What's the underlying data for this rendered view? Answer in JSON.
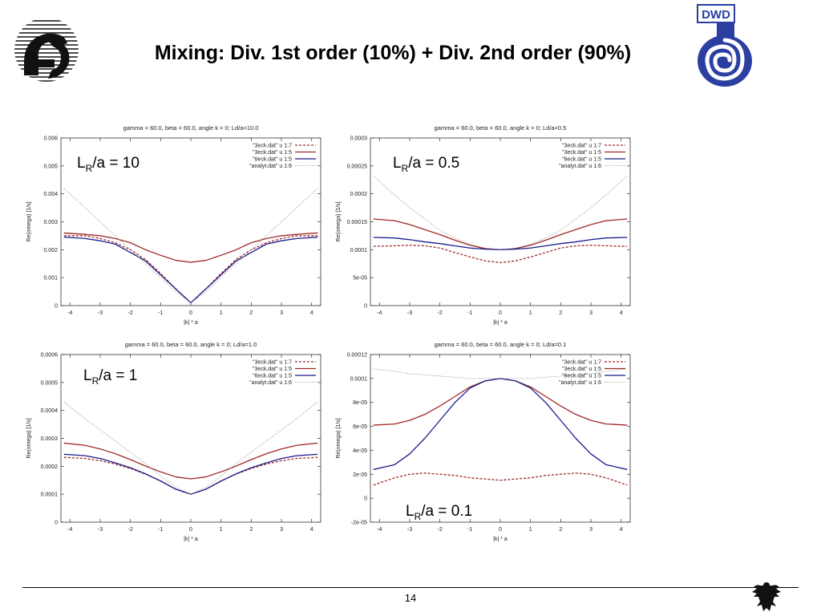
{
  "slide": {
    "title": "Mixing: Div. 1st order (10%) + Div. 2nd order (90%)",
    "page_number": "14",
    "logo_right_text": "DWD"
  },
  "colors": {
    "red": "#a02828",
    "blue": "#1a1a8c",
    "gray": "#9a9a9a"
  },
  "chart_data": [
    {
      "type": "line",
      "title": "gamma = 60.0, beta = 60.0, angle k = 0;  Ld/a=10.0",
      "xlabel": "|k| * a",
      "ylabel": "Re(omega) [1/s]",
      "xlim": [
        -4.3,
        4.3
      ],
      "ylim": [
        0,
        0.006
      ],
      "xticks": [
        -4,
        -3,
        -2,
        -1,
        0,
        1,
        2,
        3,
        4
      ],
      "xtick_labels": [
        "-4",
        "-3",
        "-2",
        "-1",
        "0",
        "1",
        "2",
        "3",
        "4"
      ],
      "yticks": [
        0,
        0.001,
        0.002,
        0.003,
        0.004,
        0.005,
        0.006
      ],
      "ytick_labels": [
        "0",
        "0.001",
        "0.002",
        "0.003",
        "0.004",
        "0.005",
        "0.006"
      ],
      "legend_position": "top-right",
      "annotation": {
        "base": "L",
        "sub": "R",
        "rest": "/a = 10"
      },
      "x": [
        -4.2,
        -3.5,
        -3,
        -2.5,
        -2,
        -1.5,
        -1,
        -0.5,
        0,
        0.5,
        1,
        1.5,
        2,
        2.5,
        3,
        3.5,
        4.2
      ],
      "series": [
        {
          "name": "\"3eck.dat\" u 1:7",
          "color": "red",
          "style": "dashed",
          "values": [
            0.0025,
            0.0025,
            0.0024,
            0.00225,
            0.002,
            0.00165,
            0.00115,
            0.0006,
            0.0001,
            0.0006,
            0.00115,
            0.00165,
            0.002,
            0.00225,
            0.0024,
            0.0025,
            0.0025
          ]
        },
        {
          "name": "\"3eck.dat\" u 1:5",
          "color": "red",
          "style": "solid",
          "values": [
            0.0026,
            0.00255,
            0.0025,
            0.0024,
            0.00225,
            0.002,
            0.0018,
            0.00162,
            0.00155,
            0.00162,
            0.0018,
            0.002,
            0.00225,
            0.0024,
            0.0025,
            0.00255,
            0.0026
          ]
        },
        {
          "name": "\"6eck.dat\" u 1:5",
          "color": "blue",
          "style": "solid",
          "values": [
            0.00245,
            0.0024,
            0.00232,
            0.0022,
            0.0019,
            0.0016,
            0.0011,
            0.0006,
            0.0001,
            0.0006,
            0.0011,
            0.0016,
            0.0019,
            0.0022,
            0.00232,
            0.0024,
            0.00245
          ]
        },
        {
          "name": "\"analyt.dat\" u 1:6",
          "color": "gray",
          "style": "dotted",
          "values": [
            0.0042,
            0.0035,
            0.003,
            0.0025,
            0.002,
            0.0015,
            0.001,
            0.0005,
            0.0001,
            0.0005,
            0.001,
            0.0015,
            0.002,
            0.0025,
            0.003,
            0.0035,
            0.0042
          ]
        }
      ]
    },
    {
      "type": "line",
      "title": "gamma = 60.0, beta = 60.0, angle k = 0;  Ld/a=0.5",
      "xlabel": "|k| * a",
      "ylabel": "Re(omega) [1/s]",
      "xlim": [
        -4.3,
        4.3
      ],
      "ylim": [
        0,
        0.0003
      ],
      "xticks": [
        -4,
        -3,
        -2,
        -1,
        0,
        1,
        2,
        3,
        4
      ],
      "xtick_labels": [
        "-4",
        "-3",
        "-2",
        "-1",
        "0",
        "1",
        "2",
        "3",
        "4"
      ],
      "yticks": [
        0,
        5e-05,
        0.0001,
        0.00015,
        0.0002,
        0.00025,
        0.0003
      ],
      "ytick_labels": [
        "0",
        "5e-05",
        "0.0001",
        "0.00015",
        "0.0002",
        "0.00025",
        "0.0003"
      ],
      "legend_position": "top-right",
      "annotation": {
        "base": "L",
        "sub": "R",
        "rest": "/a = 0.5"
      },
      "x": [
        -4.2,
        -3.5,
        -3,
        -2.5,
        -2,
        -1.5,
        -1,
        -0.5,
        0,
        0.5,
        1,
        1.5,
        2,
        2.5,
        3,
        3.5,
        4.2
      ],
      "series": [
        {
          "name": "\"3eck.dat\" u 1:7",
          "color": "red",
          "style": "dashed",
          "values": [
            0.000106,
            0.000107,
            0.000108,
            0.000107,
            0.000103,
            9.5e-05,
            8.7e-05,
            8e-05,
            7.7e-05,
            8e-05,
            8.7e-05,
            9.5e-05,
            0.000103,
            0.000107,
            0.000108,
            0.000107,
            0.000106
          ]
        },
        {
          "name": "\"3eck.dat\" u 1:5",
          "color": "red",
          "style": "solid",
          "values": [
            0.000155,
            0.000152,
            0.000145,
            0.000136,
            0.000127,
            0.000117,
            0.000108,
            0.000102,
            0.0001,
            0.000102,
            0.000108,
            0.000117,
            0.000127,
            0.000136,
            0.000145,
            0.000152,
            0.000155
          ]
        },
        {
          "name": "\"6eck.dat\" u 1:5",
          "color": "blue",
          "style": "solid",
          "values": [
            0.000122,
            0.000121,
            0.000118,
            0.000114,
            0.000111,
            0.000107,
            0.000103,
            0.000101,
            0.0001,
            0.000101,
            0.000103,
            0.000107,
            0.000111,
            0.000114,
            0.000118,
            0.000121,
            0.000122
          ]
        },
        {
          "name": "\"analyt.dat\" u 1:6",
          "color": "gray",
          "style": "dotted",
          "values": [
            0.000232,
            0.000198,
            0.000175,
            0.000155,
            0.000135,
            0.000121,
            0.00011,
            0.000103,
            0.0001,
            0.000103,
            0.00011,
            0.000121,
            0.000135,
            0.000155,
            0.000175,
            0.000198,
            0.000232
          ]
        }
      ]
    },
    {
      "type": "line",
      "title": "gamma = 60.0, beta = 60.0, angle k = 0;  Ld/a=1.0",
      "xlabel": "|k| * a",
      "ylabel": "Re(omega) [1/s]",
      "xlim": [
        -4.3,
        4.3
      ],
      "ylim": [
        0,
        0.0006
      ],
      "xticks": [
        -4,
        -3,
        -2,
        -1,
        0,
        1,
        2,
        3,
        4
      ],
      "xtick_labels": [
        "-4",
        "-3",
        "-2",
        "-1",
        "0",
        "1",
        "2",
        "3",
        "4"
      ],
      "yticks": [
        0,
        0.0001,
        0.0002,
        0.0003,
        0.0004,
        0.0005,
        0.0006
      ],
      "ytick_labels": [
        "0",
        "0.0001",
        "0.0002",
        "0.0003",
        "0.0004",
        "0.0005",
        "0.0006"
      ],
      "legend_position": "top-right",
      "annotation": {
        "base": "L",
        "sub": "R",
        "rest": "/a = 1"
      },
      "x": [
        -4.2,
        -3.5,
        -3,
        -2.5,
        -2,
        -1.5,
        -1,
        -0.5,
        0,
        0.5,
        1,
        1.5,
        2,
        2.5,
        3,
        3.5,
        4.2
      ],
      "series": [
        {
          "name": "\"3eck.dat\" u 1:7",
          "color": "red",
          "style": "dashed",
          "values": [
            0.000232,
            0.000228,
            0.00022,
            0.000208,
            0.000192,
            0.000172,
            0.000148,
            0.000118,
            0.0001,
            0.000118,
            0.000148,
            0.000172,
            0.000192,
            0.000208,
            0.00022,
            0.000228,
            0.000232
          ]
        },
        {
          "name": "\"3eck.dat\" u 1:5",
          "color": "red",
          "style": "solid",
          "values": [
            0.000283,
            0.000275,
            0.000262,
            0.000245,
            0.000224,
            0.000201,
            0.00018,
            0.000162,
            0.000155,
            0.000162,
            0.00018,
            0.000201,
            0.000224,
            0.000245,
            0.000262,
            0.000275,
            0.000283
          ]
        },
        {
          "name": "\"6eck.dat\" u 1:5",
          "color": "blue",
          "style": "solid",
          "values": [
            0.000243,
            0.000238,
            0.000228,
            0.000212,
            0.000195,
            0.000173,
            0.000147,
            0.000118,
            0.0001,
            0.000118,
            0.000147,
            0.000173,
            0.000195,
            0.000212,
            0.000228,
            0.000238,
            0.000243
          ]
        },
        {
          "name": "\"analyt.dat\" u 1:6",
          "color": "gray",
          "style": "dotted",
          "values": [
            0.00043,
            0.00037,
            0.00033,
            0.00029,
            0.00025,
            0.00021,
            0.000165,
            0.000125,
            0.0001,
            0.000125,
            0.000165,
            0.00021,
            0.00025,
            0.00029,
            0.00033,
            0.00037,
            0.00043
          ]
        }
      ]
    },
    {
      "type": "line",
      "title": "gamma = 60.0, beta = 60.0, angle k = 0;  Ld/a=0.1",
      "xlabel": "|k| * a",
      "ylabel": "Re(omega) [1/s]",
      "xlim": [
        -4.3,
        4.3
      ],
      "ylim": [
        -2e-05,
        0.00012
      ],
      "xticks": [
        -4,
        -3,
        -2,
        -1,
        0,
        1,
        2,
        3,
        4
      ],
      "xtick_labels": [
        "-4",
        "-3",
        "-2",
        "-1",
        "0",
        "1",
        "2",
        "3",
        "4"
      ],
      "yticks": [
        -2e-05,
        0,
        2e-05,
        4e-05,
        6e-05,
        8e-05,
        0.0001,
        0.00012
      ],
      "ytick_labels": [
        "-2e-05",
        "0",
        "2e-05",
        "4e-05",
        "6e-05",
        "8e-05",
        "0.0001",
        "0.00012"
      ],
      "legend_position": "top-right",
      "annotation": {
        "base": "L",
        "sub": "R",
        "rest": "/a = 0.1"
      },
      "x": [
        -4.2,
        -3.5,
        -3,
        -2.5,
        -2,
        -1.5,
        -1,
        -0.5,
        0,
        0.5,
        1,
        1.5,
        2,
        2.5,
        3,
        3.5,
        4.2
      ],
      "series": [
        {
          "name": "\"3eck.dat\" u 1:7",
          "color": "red",
          "style": "dashed",
          "values": [
            1.1e-05,
            1.7e-05,
            2e-05,
            2.1e-05,
            2e-05,
            1.9e-05,
            1.7e-05,
            1.6e-05,
            1.5e-05,
            1.6e-05,
            1.7e-05,
            1.9e-05,
            2e-05,
            2.1e-05,
            2e-05,
            1.7e-05,
            1.1e-05
          ]
        },
        {
          "name": "\"3eck.dat\" u 1:5",
          "color": "red",
          "style": "solid",
          "values": [
            6.1e-05,
            6.2e-05,
            6.5e-05,
            7e-05,
            7.7e-05,
            8.5e-05,
            9.3e-05,
            9.8e-05,
            0.0001,
            9.8e-05,
            9.3e-05,
            8.5e-05,
            7.7e-05,
            7e-05,
            6.5e-05,
            6.2e-05,
            6.1e-05
          ]
        },
        {
          "name": "\"6eck.dat\" u 1:5",
          "color": "blue",
          "style": "solid",
          "values": [
            2.4e-05,
            2.8e-05,
            3.7e-05,
            5e-05,
            6.5e-05,
            8e-05,
            9.2e-05,
            9.8e-05,
            0.0001,
            9.8e-05,
            9.2e-05,
            8e-05,
            6.5e-05,
            5e-05,
            3.7e-05,
            2.8e-05,
            2.4e-05
          ]
        },
        {
          "name": "\"analyt.dat\" u 1:6",
          "color": "gray",
          "style": "dotted",
          "values": [
            0.000108,
            0.000106,
            0.000104,
            0.000103,
            0.000102,
            0.000101,
            0.0001,
            0.0001,
            0.0001,
            0.0001,
            0.0001,
            0.000101,
            0.000102,
            0.000103,
            0.000104,
            0.000106,
            0.000108
          ]
        }
      ]
    }
  ]
}
